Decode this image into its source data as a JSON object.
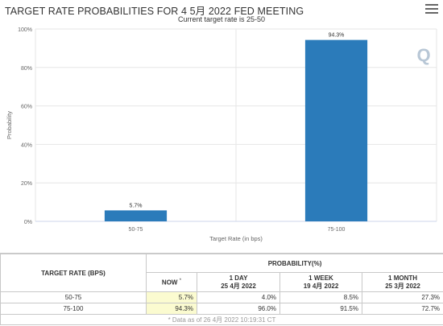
{
  "chart": {
    "title": "TARGET RATE PROBABILITIES FOR 4 5月 2022 FED MEETING",
    "subtitle": "Current target rate is 25-50",
    "watermark": "Q",
    "menu_icon": "hamburger-menu-icon"
  },
  "chart_data": {
    "type": "bar",
    "title": "TARGET RATE PROBABILITIES FOR 4 5月 2022 FED MEETING",
    "subtitle": "Current target rate is 25-50",
    "categories": [
      "50-75",
      "75-100"
    ],
    "values": [
      5.7,
      94.3
    ],
    "data_labels": [
      "5.7%",
      "94.3%"
    ],
    "xlabel": "Target Rate (in bps)",
    "ylabel": "Probability",
    "ylim": [
      0,
      100
    ],
    "y_ticks": [
      "0%",
      "20%",
      "40%",
      "60%",
      "80%",
      "100%"
    ],
    "grid": true,
    "bar_color": "#2b7bba"
  },
  "table": {
    "col_target_header": "TARGET RATE (BPS)",
    "col_prob_header": "PROBABILITY(%)",
    "now_label": "NOW",
    "now_mark": "*",
    "day_label": "1 DAY",
    "day_date": "25 4月 2022",
    "week_label": "1 WEEK",
    "week_date": "19 4月 2022",
    "month_label": "1 MONTH",
    "month_date": "25 3月 2022",
    "rows": [
      {
        "rate": "50-75",
        "now": "5.7%",
        "day": "4.0%",
        "week": "8.5%",
        "month": "27.3%"
      },
      {
        "rate": "75-100",
        "now": "94.3%",
        "day": "96.0%",
        "week": "91.5%",
        "month": "72.7%"
      }
    ],
    "footnote": "* Data as of 26 4月 2022 10:19:31 CT"
  },
  "colors": {
    "bar": "#2b7bba",
    "now_highlight": "#fbfbd0",
    "grid": "#e6e6e6"
  }
}
